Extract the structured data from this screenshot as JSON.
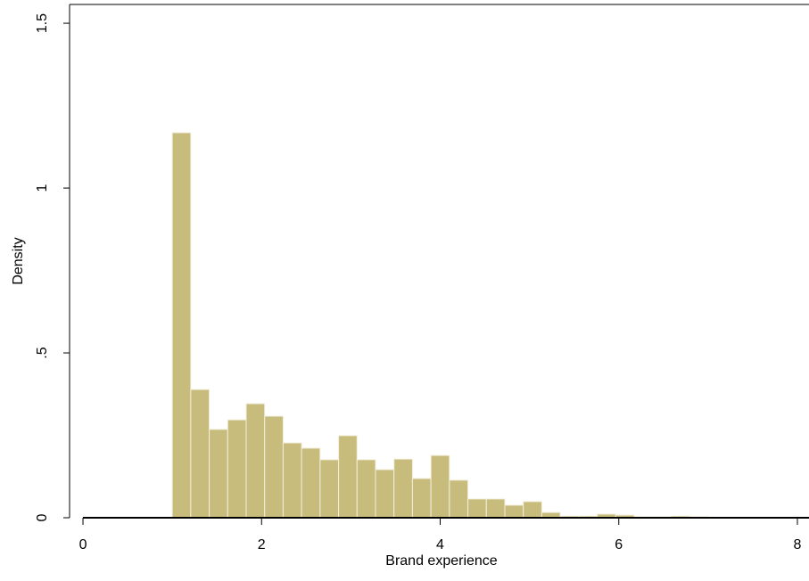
{
  "chart_data": {
    "type": "histogram",
    "x_label": "Brand experience",
    "y_label": "Density",
    "bins": [
      1,
      1.2069,
      1.4138,
      1.6207,
      1.8276,
      2.0345,
      2.2414,
      2.4483,
      2.6552,
      2.8621,
      3.069,
      3.2759,
      3.4828,
      3.6897,
      3.8966,
      4.1034,
      4.3103,
      4.5172,
      4.7241,
      4.931,
      5.1379,
      5.3448,
      5.5517,
      5.7586,
      5.9655,
      6.1724,
      6.3793,
      6.5862,
      6.7931,
      7
    ],
    "values": [
      1.168,
      0.389,
      0.268,
      0.297,
      0.346,
      0.308,
      0.227,
      0.211,
      0.176,
      0.249,
      0.176,
      0.146,
      0.178,
      0.119,
      0.189,
      0.114,
      0.057,
      0.057,
      0.038,
      0.049,
      0.016,
      0.005,
      0.005,
      0.011,
      0.008,
      0.003,
      0.003,
      0.005,
      0.003
    ],
    "color": "#c8bc7c",
    "xlim": [
      -0.15,
      8.13
    ],
    "ylim": [
      0,
      1.557
    ],
    "xticks": [
      0,
      2,
      4,
      6,
      8
    ],
    "yticks": [
      0,
      {
        "value": 0.5,
        "label": ".5"
      },
      1,
      1.5
    ]
  }
}
